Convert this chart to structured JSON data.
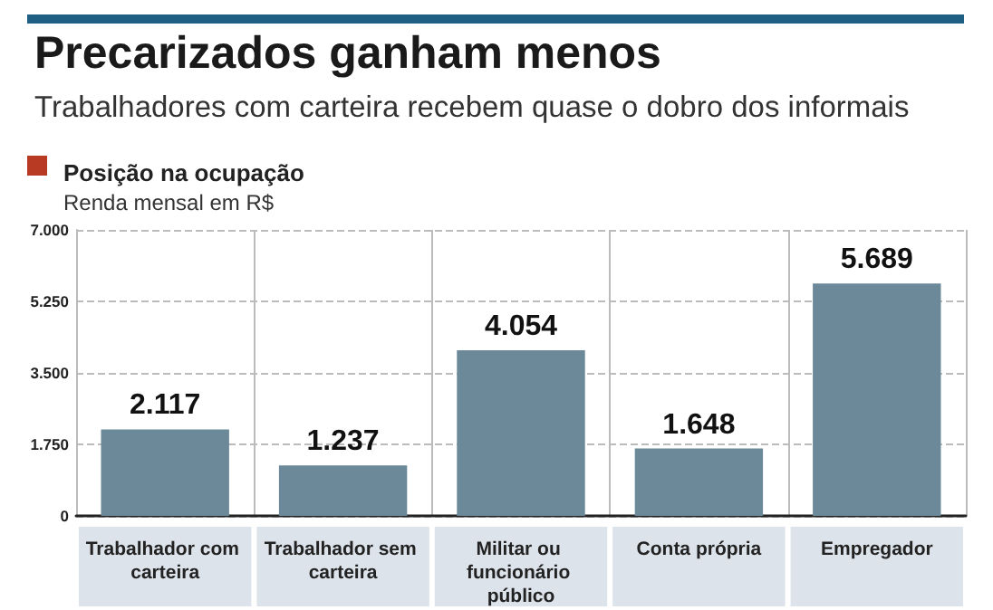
{
  "chart_data": {
    "type": "bar",
    "title": "Precarizados ganham menos",
    "subtitle": "Trabalhadores com carteira recebem quase o dobro dos informais",
    "xlabel": "Posição na ocupação",
    "ylabel": "Renda mensal em R$",
    "categories": [
      "Trabalhador com carteira",
      "Trabalhador sem carteira",
      "Militar ou funcionário público",
      "Conta própria",
      "Empregador"
    ],
    "values": [
      2117,
      1237,
      4054,
      1648,
      5689
    ],
    "value_labels": [
      "2.117",
      "1.237",
      "4.054",
      "1.648",
      "5.689"
    ],
    "color": "#6b8998",
    "ylim": [
      0,
      7000
    ],
    "yticks": [
      {
        "value": 0,
        "label": "0"
      },
      {
        "value": 1750,
        "label": "1.750"
      },
      {
        "value": 3500,
        "label": "3.500"
      },
      {
        "value": 5250,
        "label": "5.250"
      },
      {
        "value": 7000,
        "label": "7.000"
      }
    ],
    "grid": true
  }
}
